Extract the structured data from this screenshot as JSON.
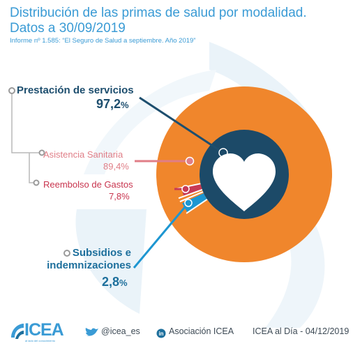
{
  "header": {
    "title": "Distribución de las primas de salud por modalidad. Datos a 30/09/2019",
    "subtitle": "Informe nº 1.585: “El Seguro de Salud a septiembre. Año 2019”"
  },
  "chart_data": {
    "type": "pie",
    "title": "Distribución de las primas de salud por modalidad. Datos a 30/09/2019",
    "subtitle": "Informe nº 1.585: “El Seguro de Salud a septiembre. Año 2019”",
    "slices": [
      {
        "name": "Prestación de servicios",
        "value": 97.2,
        "color": "#f0862c"
      },
      {
        "name": "Subsidios e indemnizaciones",
        "value": 2.8,
        "color": "#1d96d1"
      }
    ],
    "inner_slices": [
      {
        "name": "Asistencia Sanitaria",
        "value": 89.4,
        "color": "#1c4a68"
      },
      {
        "name": "Reembolso de Gastos",
        "value": 7.8,
        "color": "#c83a55"
      }
    ],
    "labels": {
      "prestacion": {
        "name": "Prestación de servicios",
        "value": "97,2",
        "unit": "%"
      },
      "asistencia": {
        "name": "Asistencia Sanitaria",
        "value": "89,4%"
      },
      "reembolso": {
        "name": "Reembolso de Gastos",
        "value": "7,8%"
      },
      "subsidios": {
        "name_line1": "Subsidios e",
        "name_line2": "indemnizaciones",
        "value": "2,8",
        "unit": "%"
      }
    },
    "center_icon": "heart-icon"
  },
  "footer": {
    "logo": "ICEA",
    "logo_tagline": "al lado del conocimiento",
    "twitter": "@icea_es",
    "linkedin": "Asociación ICEA",
    "date_text": "ICEA al Día - 04/12/2019"
  },
  "colors": {
    "title": "#3a9bd5",
    "orange": "#f0862c",
    "navy": "#1c4a68",
    "pink": "#e07e87",
    "crimson": "#c83a55",
    "blue": "#1d96d1"
  }
}
